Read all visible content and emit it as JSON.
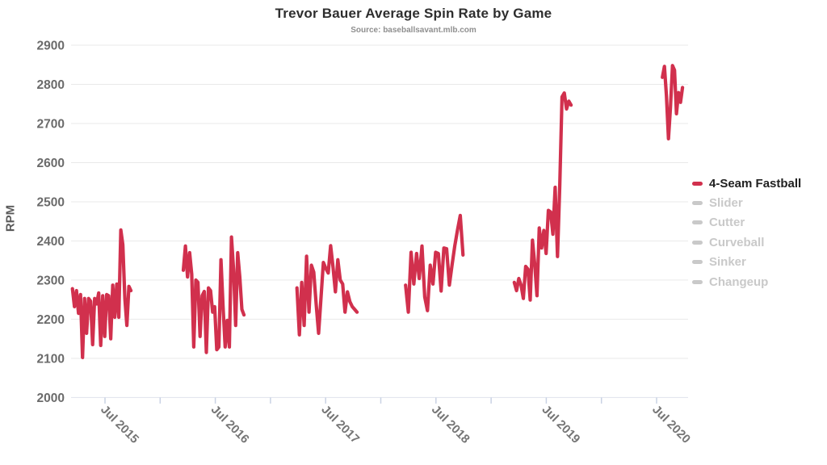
{
  "header": {
    "title": "Trevor Bauer Average Spin Rate by Game",
    "subtitle": "Source: baseballsavant.mlb.com"
  },
  "colors": {
    "accent": "#d1304d",
    "inactive": "#c9c9c9",
    "active_text": "#212121",
    "gridline": "#e9e9e9",
    "axis_line": "#dfe3ec",
    "tick_mark": "#c9d2e4",
    "y_label": "#6b6b6b",
    "x_label": "#757575"
  },
  "legend": {
    "position": "right",
    "items": [
      {
        "label": "4-Seam Fastball",
        "active": true
      },
      {
        "label": "Slider",
        "active": false
      },
      {
        "label": "Cutter",
        "active": false
      },
      {
        "label": "Curveball",
        "active": false
      },
      {
        "label": "Sinker",
        "active": false
      },
      {
        "label": "Changeup",
        "active": false
      }
    ]
  },
  "chart_data": {
    "type": "line",
    "title": "Trevor Bauer Average Spin Rate by Game",
    "subtitle": "Source: baseballsavant.mlb.com",
    "xlabel": "",
    "ylabel": "RPM",
    "grid": true,
    "legend_position": "right",
    "ylim": [
      2000,
      2900
    ],
    "y_ticks": [
      2000,
      2100,
      2200,
      2300,
      2400,
      2500,
      2600,
      2700,
      2800,
      2900
    ],
    "xlim_decimal_years": [
      2015.1925,
      2020.7855
    ],
    "x_ticks": [
      {
        "year": 2015.5,
        "label": "Jul 2015"
      },
      {
        "year": 2016.0,
        "label": ""
      },
      {
        "year": 2016.5,
        "label": "Jul 2016"
      },
      {
        "year": 2017.0,
        "label": ""
      },
      {
        "year": 2017.5,
        "label": "Jul 2017"
      },
      {
        "year": 2018.0,
        "label": ""
      },
      {
        "year": 2018.5,
        "label": "Jul 2018"
      },
      {
        "year": 2019.0,
        "label": ""
      },
      {
        "year": 2019.5,
        "label": "Jul 2019"
      },
      {
        "year": 2020.0,
        "label": ""
      },
      {
        "year": 2020.5,
        "label": "Jul 2020"
      }
    ],
    "series": [
      {
        "name": "4-Seam Fastball",
        "color": "#d1304d",
        "unit": "RPM",
        "seasons": [
          {
            "season": "2015",
            "start_year": 2015.205,
            "end_year": 2015.735,
            "values": [
              2278,
              2232,
              2273,
              2215,
              2263,
              2102,
              2253,
              2164,
              2253,
              2246,
              2135,
              2253,
              2239,
              2267,
              2133,
              2260,
              2156,
              2263,
              2260,
              2150,
              2287,
              2205,
              2290,
              2205,
              2428,
              2390,
              2253,
              2184,
              2284,
              2273
            ]
          },
          {
            "season": "2016",
            "start_year": 2016.21,
            "end_year": 2016.76,
            "values": [
              2325,
              2387,
              2308,
              2370,
              2315,
              2129,
              2300,
              2294,
              2156,
              2260,
              2271,
              2115,
              2280,
              2273,
              2218,
              2232,
              2122,
              2129,
              2352,
              2232,
              2129,
              2197,
              2129,
              2410,
              2327,
              2184,
              2370,
              2308,
              2225,
              2211
            ]
          },
          {
            "season": "2017",
            "start_year": 2017.24,
            "end_year": 2017.785,
            "values": [
              2280,
              2160,
              2294,
              2184,
              2361,
              2218,
              2338,
              2320,
              2238,
              2164,
              2256,
              2345,
              2330,
              2318,
              2388,
              2332,
              2270,
              2352,
              2300,
              2290,
              2218,
              2270,
              2245,
              2232,
              2225,
              2218
            ]
          },
          {
            "season": "2018",
            "start_year": 2018.225,
            "end_year": 2018.745,
            "values": [
              2287,
              2218,
              2371,
              2290,
              2368,
              2304,
              2387,
              2257,
              2222,
              2338,
              2290,
              2371,
              2368,
              2272,
              2382,
              2380,
              2287,
              2338,
              2387,
              2428,
              2465,
              2364
            ]
          },
          {
            "season": "2019",
            "start_year": 2019.21,
            "end_year": 2019.725,
            "values": [
              2294,
              2273,
              2304,
              2287,
              2253,
              2335,
              2328,
              2249,
              2402,
              2341,
              2260,
              2433,
              2382,
              2427,
              2368,
              2478,
              2474,
              2417,
              2537,
              2360,
              2541,
              2768,
              2778,
              2737,
              2757,
              2747
            ]
          },
          {
            "season": "2020",
            "start_year": 2020.553,
            "end_year": 2020.735,
            "values": [
              2818,
              2846,
              2771,
              2661,
              2742,
              2848,
              2836,
              2725,
              2779,
              2754,
              2792
            ]
          }
        ]
      }
    ]
  }
}
